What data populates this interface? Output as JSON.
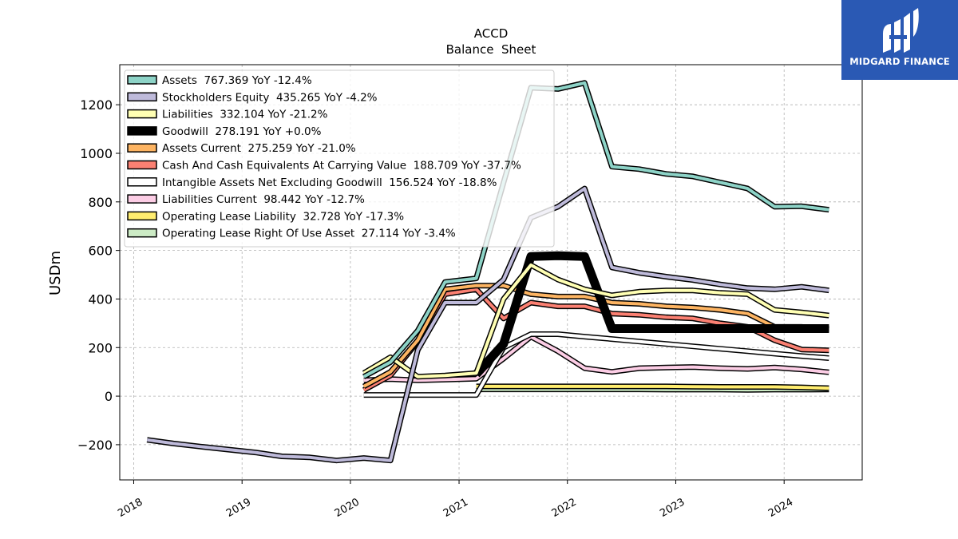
{
  "brand": {
    "name": "MIDGARD FINANCE",
    "color": "#2a59b4"
  },
  "chart_data": {
    "type": "line",
    "title": "ACCD",
    "subtitle": "Balance  Sheet",
    "ylabel": "USDm",
    "xlabel": "",
    "xlim": [
      "2017-11-15",
      "2024-09-20"
    ],
    "ylim": [
      -345,
      1365
    ],
    "yticks": [
      -200,
      0,
      200,
      400,
      600,
      800,
      1000,
      1200
    ],
    "ytick_labels": [
      "−200",
      "0",
      "200",
      "400",
      "600",
      "800",
      "1000",
      "1200"
    ],
    "xticks": [
      "2018-01-01",
      "2019-01-01",
      "2020-01-01",
      "2021-01-01",
      "2022-01-01",
      "2023-01-01",
      "2024-01-01"
    ],
    "xtick_labels": [
      "2018",
      "2019",
      "2020",
      "2021",
      "2022",
      "2023",
      "2024"
    ],
    "grid": true,
    "legend_position": "top-left",
    "series": [
      {
        "name": "Assets",
        "legend": "Assets  767.369 YoY -12.4%",
        "color": "#8dd3c7",
        "width": 4,
        "points": [
          [
            "2020-02-15",
            80
          ],
          [
            "2020-05-15",
            140
          ],
          [
            "2020-08-15",
            270
          ],
          [
            "2020-11-15",
            470
          ],
          [
            "2021-02-28",
            485
          ],
          [
            "2021-05-31",
            880
          ],
          [
            "2021-08-31",
            1270
          ],
          [
            "2021-11-30",
            1265
          ],
          [
            "2022-02-28",
            1290
          ],
          [
            "2022-05-31",
            945
          ],
          [
            "2022-08-31",
            935
          ],
          [
            "2022-11-30",
            915
          ],
          [
            "2023-02-28",
            905
          ],
          [
            "2023-05-31",
            880
          ],
          [
            "2023-08-31",
            855
          ],
          [
            "2023-11-30",
            780
          ],
          [
            "2024-02-29",
            782
          ],
          [
            "2024-05-31",
            767.369
          ]
        ]
      },
      {
        "name": "Stockholders Equity",
        "legend": "Stockholders Equity  435.265 YoY -4.2%",
        "color": "#bebada",
        "width": 4,
        "points": [
          [
            "2018-02-15",
            -180
          ],
          [
            "2018-05-15",
            -195
          ],
          [
            "2018-08-15",
            -208
          ],
          [
            "2018-11-15",
            -220
          ],
          [
            "2019-02-15",
            -232
          ],
          [
            "2019-05-15",
            -248
          ],
          [
            "2019-08-15",
            -252
          ],
          [
            "2019-11-15",
            -265
          ],
          [
            "2020-02-15",
            -255
          ],
          [
            "2020-05-15",
            -265
          ],
          [
            "2020-08-15",
            190
          ],
          [
            "2020-11-15",
            385
          ],
          [
            "2021-02-28",
            385
          ],
          [
            "2021-05-31",
            480
          ],
          [
            "2021-08-31",
            735
          ],
          [
            "2021-11-30",
            780
          ],
          [
            "2022-02-28",
            855
          ],
          [
            "2022-05-31",
            530
          ],
          [
            "2022-08-31",
            508
          ],
          [
            "2022-11-30",
            492
          ],
          [
            "2023-02-28",
            478
          ],
          [
            "2023-05-31",
            460
          ],
          [
            "2023-08-31",
            445
          ],
          [
            "2023-11-30",
            440
          ],
          [
            "2024-02-29",
            450
          ],
          [
            "2024-05-31",
            435.265
          ]
        ]
      },
      {
        "name": "Liabilities",
        "legend": "Liabilities  332.104 YoY -21.2%",
        "color": "#ffffb3",
        "width": 4,
        "points": [
          [
            "2020-02-15",
            95
          ],
          [
            "2020-05-15",
            160
          ],
          [
            "2020-08-15",
            80
          ],
          [
            "2020-11-15",
            85
          ],
          [
            "2021-02-28",
            95
          ],
          [
            "2021-05-31",
            400
          ],
          [
            "2021-08-31",
            540
          ],
          [
            "2021-11-30",
            480
          ],
          [
            "2022-02-28",
            440
          ],
          [
            "2022-05-31",
            415
          ],
          [
            "2022-08-31",
            430
          ],
          [
            "2022-11-30",
            435
          ],
          [
            "2023-02-28",
            435
          ],
          [
            "2023-05-31",
            425
          ],
          [
            "2023-08-31",
            420
          ],
          [
            "2023-11-30",
            355
          ],
          [
            "2024-02-29",
            345
          ],
          [
            "2024-05-31",
            332.104
          ]
        ]
      },
      {
        "name": "Goodwill",
        "legend": "Goodwill  278.191 YoY +0.0%",
        "color": "#000000",
        "width": 8,
        "points": [
          [
            "2021-02-28",
            90
          ],
          [
            "2021-05-31",
            215
          ],
          [
            "2021-08-31",
            575
          ],
          [
            "2021-11-30",
            578
          ],
          [
            "2022-02-28",
            575
          ],
          [
            "2022-05-31",
            278
          ],
          [
            "2022-08-31",
            278
          ],
          [
            "2022-11-30",
            278
          ],
          [
            "2023-02-28",
            278
          ],
          [
            "2023-05-31",
            278
          ],
          [
            "2023-08-31",
            278
          ],
          [
            "2023-11-30",
            278
          ],
          [
            "2024-02-29",
            278
          ],
          [
            "2024-05-31",
            278.191
          ]
        ]
      },
      {
        "name": "Assets Current",
        "legend": "Assets Current  275.259 YoY -21.0%",
        "color": "#fdb462",
        "width": 4,
        "points": [
          [
            "2020-02-15",
            40
          ],
          [
            "2020-05-15",
            100
          ],
          [
            "2020-08-15",
            230
          ],
          [
            "2020-11-15",
            440
          ],
          [
            "2021-02-28",
            455
          ],
          [
            "2021-05-31",
            455
          ],
          [
            "2021-08-31",
            420
          ],
          [
            "2021-11-30",
            410
          ],
          [
            "2022-02-28",
            410
          ],
          [
            "2022-05-31",
            385
          ],
          [
            "2022-08-31",
            380
          ],
          [
            "2022-11-30",
            370
          ],
          [
            "2023-02-28",
            365
          ],
          [
            "2023-05-31",
            355
          ],
          [
            "2023-08-31",
            340
          ],
          [
            "2023-11-30",
            285
          ],
          [
            "2024-02-29",
            285
          ],
          [
            "2024-05-31",
            275.259
          ]
        ]
      },
      {
        "name": "Cash And Cash Equivalents At Carrying Value",
        "legend": "Cash And Cash Equivalents At Carrying Value  188.709 YoY -37.7%",
        "color": "#fb8072",
        "width": 4,
        "points": [
          [
            "2020-02-15",
            25
          ],
          [
            "2020-05-15",
            85
          ],
          [
            "2020-08-15",
            225
          ],
          [
            "2020-11-15",
            420
          ],
          [
            "2021-02-28",
            440
          ],
          [
            "2021-05-31",
            320
          ],
          [
            "2021-08-31",
            385
          ],
          [
            "2021-11-30",
            370
          ],
          [
            "2022-02-28",
            370
          ],
          [
            "2022-05-31",
            340
          ],
          [
            "2022-08-31",
            335
          ],
          [
            "2022-11-30",
            325
          ],
          [
            "2023-02-28",
            320
          ],
          [
            "2023-05-31",
            300
          ],
          [
            "2023-08-31",
            285
          ],
          [
            "2023-11-30",
            230
          ],
          [
            "2024-02-29",
            192
          ],
          [
            "2024-05-31",
            188.709
          ]
        ]
      },
      {
        "name": "Intangible Assets Net Excluding Goodwill",
        "legend": "Intangible Assets Net Excluding Goodwill  156.524 YoY -18.8%",
        "color": "#ffffff",
        "width": 4,
        "points": [
          [
            "2020-02-15",
            5
          ],
          [
            "2021-02-28",
            5
          ],
          [
            "2021-05-31",
            200
          ],
          [
            "2021-08-31",
            255
          ],
          [
            "2021-11-30",
            255
          ],
          [
            "2022-02-28",
            245
          ],
          [
            "2022-05-31",
            235
          ],
          [
            "2022-08-31",
            225
          ],
          [
            "2022-11-30",
            215
          ],
          [
            "2023-02-28",
            205
          ],
          [
            "2023-05-31",
            195
          ],
          [
            "2023-08-31",
            185
          ],
          [
            "2023-11-30",
            175
          ],
          [
            "2024-02-29",
            165
          ],
          [
            "2024-05-31",
            156.524
          ]
        ]
      },
      {
        "name": "Liabilities Current",
        "legend": "Liabilities Current  98.442 YoY -12.7%",
        "color": "#fccde5",
        "width": 4,
        "points": [
          [
            "2020-02-15",
            65
          ],
          [
            "2020-05-15",
            70
          ],
          [
            "2020-08-15",
            65
          ],
          [
            "2020-11-15",
            68
          ],
          [
            "2021-02-28",
            72
          ],
          [
            "2021-05-31",
            155
          ],
          [
            "2021-08-31",
            245
          ],
          [
            "2021-11-30",
            185
          ],
          [
            "2022-02-28",
            115
          ],
          [
            "2022-05-31",
            100
          ],
          [
            "2022-08-31",
            115
          ],
          [
            "2022-11-30",
            118
          ],
          [
            "2023-02-28",
            120
          ],
          [
            "2023-05-31",
            115
          ],
          [
            "2023-08-31",
            112
          ],
          [
            "2023-11-30",
            118
          ],
          [
            "2024-02-29",
            110
          ],
          [
            "2024-05-31",
            98.442
          ]
        ]
      },
      {
        "name": "Operating Lease Liability",
        "legend": "Operating Lease Liability  32.728 YoY -17.3%",
        "color": "#ffed6f",
        "width": 4,
        "points": [
          [
            "2021-02-28",
            40
          ],
          [
            "2021-05-31",
            40
          ],
          [
            "2021-08-31",
            40
          ],
          [
            "2021-11-30",
            40
          ],
          [
            "2022-02-28",
            40
          ],
          [
            "2022-05-31",
            40
          ],
          [
            "2022-08-31",
            40
          ],
          [
            "2022-11-30",
            40
          ],
          [
            "2023-02-28",
            39
          ],
          [
            "2023-05-31",
            38
          ],
          [
            "2023-08-31",
            38
          ],
          [
            "2023-11-30",
            38
          ],
          [
            "2024-02-29",
            36
          ],
          [
            "2024-05-31",
            32.728
          ]
        ]
      },
      {
        "name": "Operating Lease Right Of Use Asset",
        "legend": "Operating Lease Right Of Use Asset  27.114 YoY -3.4%",
        "color": "#ccebc5",
        "width": 4,
        "points": [
          [
            "2021-02-28",
            28
          ],
          [
            "2021-05-31",
            28
          ],
          [
            "2021-08-31",
            28
          ],
          [
            "2021-11-30",
            28
          ],
          [
            "2022-02-28",
            28
          ],
          [
            "2022-05-31",
            28
          ],
          [
            "2022-08-31",
            28
          ],
          [
            "2022-11-30",
            27
          ],
          [
            "2023-02-28",
            27
          ],
          [
            "2023-05-31",
            27
          ],
          [
            "2023-08-31",
            26
          ],
          [
            "2023-11-30",
            27
          ],
          [
            "2024-02-29",
            27
          ],
          [
            "2024-05-31",
            27.114
          ]
        ]
      }
    ]
  }
}
